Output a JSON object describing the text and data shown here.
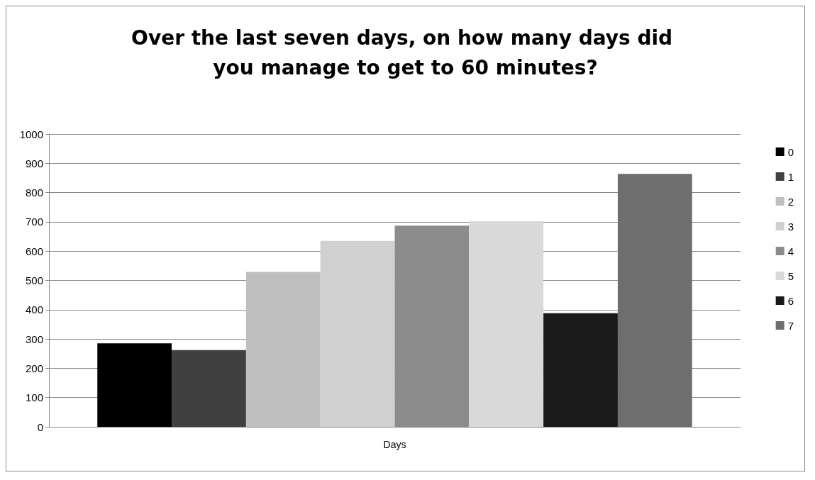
{
  "chart_data": {
    "type": "bar",
    "title": "Over the last seven days, on how many days did you manage to get to 60 minutes?",
    "categories": [
      "Days"
    ],
    "series": [
      {
        "name": "0",
        "color": "#000000",
        "values": [
          285
        ]
      },
      {
        "name": "1",
        "color": "#404040",
        "values": [
          262
        ]
      },
      {
        "name": "2",
        "color": "#bfbfbf",
        "values": [
          529
        ]
      },
      {
        "name": "3",
        "color": "#d0d0d0",
        "values": [
          635
        ]
      },
      {
        "name": "4",
        "color": "#8c8c8c",
        "values": [
          687
        ]
      },
      {
        "name": "5",
        "color": "#d9d9d9",
        "values": [
          702
        ]
      },
      {
        "name": "6",
        "color": "#1a1a1a",
        "values": [
          388
        ]
      },
      {
        "name": "7",
        "color": "#6e6e6e",
        "values": [
          864
        ]
      }
    ],
    "ylim": [
      0,
      1000
    ],
    "yticks": [
      0,
      100,
      200,
      300,
      400,
      500,
      600,
      700,
      800,
      900,
      1000
    ],
    "grid": "y",
    "legend": "right"
  }
}
